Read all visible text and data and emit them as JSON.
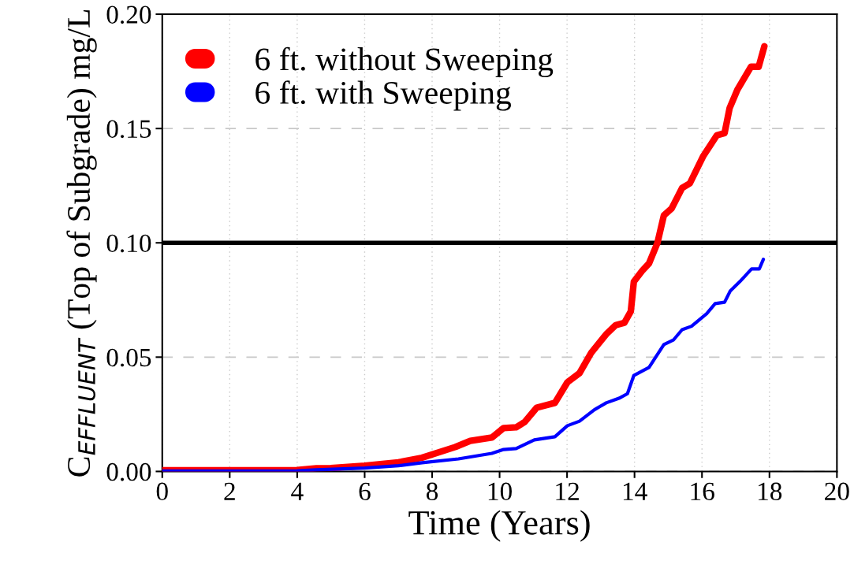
{
  "chart_data": {
    "type": "line",
    "xlabel": "Time (Years)",
    "ylabel": "C$_{EFFLUENT}$ (Top of Subgrade) mg/L",
    "xlim": [
      0,
      20
    ],
    "xticks": [
      0,
      2,
      4,
      6,
      8,
      10,
      12,
      14,
      16,
      18,
      20
    ],
    "ylim": [
      0,
      0.2
    ],
    "yticks": [
      {
        "value": 0,
        "label": "0.00"
      },
      {
        "value": 0.05,
        "label": "0.05"
      },
      {
        "value": 0.1,
        "label": "0.10"
      },
      {
        "value": 0.15,
        "label": "0.15"
      },
      {
        "value": 0.2,
        "label": "0.20"
      }
    ],
    "grid": true,
    "legend": "top left",
    "marker": "none",
    "line_style": "solid",
    "ref_lines": [
      {
        "axis": "y",
        "value": 0.1,
        "color": "#000000"
      }
    ],
    "series": [
      {
        "name": "6 ft. without Sweeping",
        "color": "#ff0000",
        "x": [
          0,
          2,
          4,
          4.57,
          5,
          6,
          7,
          7.7,
          8.69,
          9.13,
          9.77,
          10.12,
          10.49,
          10.75,
          11.1,
          11.64,
          12.01,
          12.37,
          12.72,
          13.16,
          13.44,
          13.7,
          13.89,
          13.98,
          14.24,
          14.43,
          14.68,
          14.87,
          15.1,
          15.41,
          15.64,
          16.04,
          16.44,
          16.67,
          16.82,
          17.05,
          17.45,
          17.68,
          17.85
        ],
        "values": [
          0.0005,
          0.0005,
          0.0006,
          0.0014,
          0.0015,
          0.0025,
          0.004,
          0.006,
          0.0107,
          0.0134,
          0.0148,
          0.019,
          0.0193,
          0.0217,
          0.0279,
          0.03,
          0.039,
          0.043,
          0.052,
          0.06,
          0.064,
          0.065,
          0.07,
          0.083,
          0.088,
          0.091,
          0.1,
          0.112,
          0.115,
          0.124,
          0.126,
          0.138,
          0.147,
          0.148,
          0.159,
          0.167,
          0.177,
          0.177,
          0.186
        ]
      },
      {
        "name": "6 ft. with Sweeping",
        "color": "#0000ff",
        "x": [
          0,
          2,
          4,
          4.57,
          6,
          7,
          7.7,
          8.78,
          9.77,
          10.12,
          10.49,
          11.03,
          11.64,
          12.01,
          12.37,
          12.81,
          13.16,
          13.54,
          13.79,
          13.98,
          14.43,
          14.87,
          15.16,
          15.41,
          15.69,
          16.14,
          16.39,
          16.67,
          16.84,
          17.12,
          17.47,
          17.7,
          17.82
        ],
        "values": [
          0.0002,
          0.0002,
          0.0003,
          0.0007,
          0.0015,
          0.0025,
          0.0038,
          0.0055,
          0.0079,
          0.0096,
          0.01,
          0.0138,
          0.0152,
          0.02,
          0.022,
          0.027,
          0.03,
          0.032,
          0.034,
          0.042,
          0.0455,
          0.0555,
          0.0576,
          0.062,
          0.0635,
          0.069,
          0.0734,
          0.074,
          0.079,
          0.083,
          0.0886,
          0.0886,
          0.0928
        ]
      }
    ]
  }
}
